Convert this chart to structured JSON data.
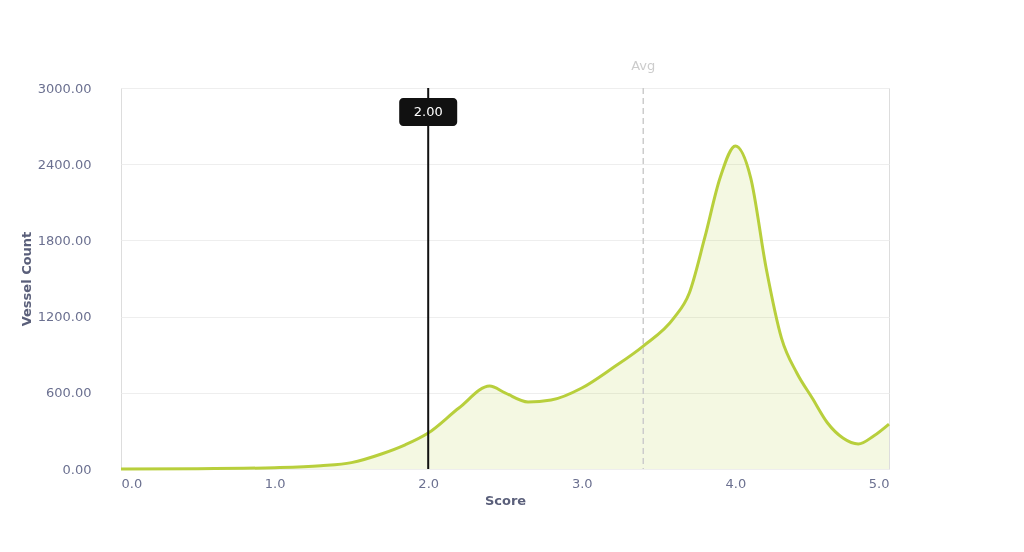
{
  "chart_data": {
    "type": "area",
    "xlabel": "Score",
    "ylabel": "Vessel Count",
    "x": [
      0,
      0.5,
      1.0,
      1.3,
      1.5,
      1.7,
      1.85,
      2.0,
      2.2,
      2.4,
      2.5,
      2.65,
      2.8,
      3.0,
      3.2,
      3.4,
      3.6,
      3.7,
      3.8,
      3.9,
      4.0,
      4.1,
      4.2,
      4.3,
      4.4,
      4.5,
      4.6,
      4.7,
      4.8,
      4.9,
      5.0
    ],
    "series": [
      {
        "color": "#b8cf3c",
        "values": [
          0,
          2,
          10,
          25,
          50,
          120,
          190,
          283,
          480,
          653,
          600,
          528,
          543,
          638,
          795,
          968,
          1189,
          1386,
          1819,
          2291,
          2543,
          2291,
          1583,
          1031,
          756,
          559,
          362,
          244,
          197,
          260,
          354
        ]
      }
    ],
    "xlim": [
      0,
      5
    ],
    "ylim": [
      0,
      3000
    ],
    "xticks": [
      {
        "value": 0,
        "label": "0.0"
      },
      {
        "value": 1,
        "label": "1.0"
      },
      {
        "value": 2,
        "label": "2.0"
      },
      {
        "value": 3,
        "label": "3.0"
      },
      {
        "value": 4,
        "label": "4.0"
      },
      {
        "value": 5,
        "label": "5.0"
      }
    ],
    "yticks": [
      {
        "value": 0,
        "label": "0.00"
      },
      {
        "value": 600,
        "label": "600.00"
      },
      {
        "value": 1200,
        "label": "1200.00"
      },
      {
        "value": 1800,
        "label": "1800.00"
      },
      {
        "value": 2400,
        "label": "2400.00"
      },
      {
        "value": 3000,
        "label": "3000.00"
      }
    ],
    "ref_lines": [
      {
        "axis": "x",
        "value": 2.0,
        "label": "2.00",
        "color": "#111111",
        "line_style": "solid"
      },
      {
        "axis": "x",
        "value": 3.4,
        "label": "Avg",
        "color": "#cccccc",
        "line_style": "dashed"
      }
    ],
    "grid": "y",
    "marker": "none",
    "line_style": "solid"
  }
}
